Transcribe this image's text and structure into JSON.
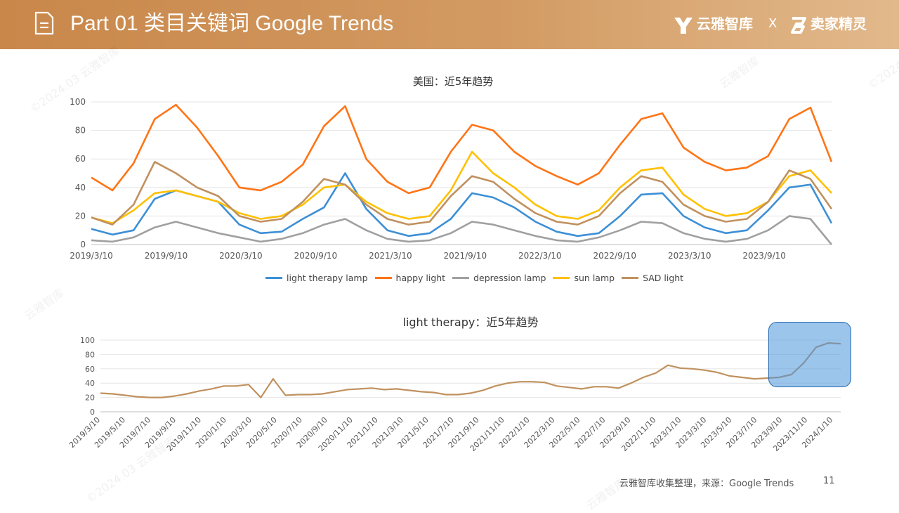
{
  "header": {
    "title": "Part 01 类目关键词 Google Trends",
    "brand_left": "云雅智库",
    "brand_sep": "X",
    "brand_right": "卖家精灵",
    "bar_color": "#c9874a"
  },
  "footer": {
    "source": "云雅智库收集整理，来源：Google Trends",
    "page": "11"
  },
  "watermarks": [
    "©2024.03 云雅智库",
    "云雅智库",
    "©2024.03",
    "云雅智库",
    "©2024.03 云雅智库",
    "云雅智库"
  ],
  "chart_data": [
    {
      "type": "line",
      "title": "美国：近5年趋势",
      "ylim": [
        0,
        100
      ],
      "yticks": [
        0,
        20,
        40,
        60,
        80,
        100
      ],
      "xtick_labels": [
        "2019/3/10",
        "2019/9/10",
        "2020/3/10",
        "2020/9/10",
        "2021/3/10",
        "2021/9/10",
        "2022/3/10",
        "2022/9/10",
        "2023/3/10",
        "2023/9/10"
      ],
      "x": [
        "2019/3",
        "2019/6",
        "2019/9",
        "2019/11",
        "2019/12",
        "2020/1",
        "2020/3",
        "2020/5",
        "2020/7",
        "2020/9",
        "2020/11",
        "2020/12",
        "2021/1",
        "2021/3",
        "2021/5",
        "2021/7",
        "2021/9",
        "2021/10",
        "2021/11",
        "2021/12",
        "2022/1",
        "2022/3",
        "2022/5",
        "2022/7",
        "2022/9",
        "2022/11",
        "2022/12",
        "2023/1",
        "2023/3",
        "2023/5",
        "2023/7",
        "2023/9",
        "2023/11",
        "2023/12",
        "2024/1",
        "2024/3"
      ],
      "series": [
        {
          "name": "light therapy lamp",
          "color": "#3d8fd6",
          "values": [
            11,
            7,
            10,
            32,
            38,
            34,
            30,
            14,
            8,
            9,
            18,
            26,
            50,
            25,
            10,
            6,
            8,
            18,
            36,
            33,
            26,
            16,
            9,
            6,
            8,
            20,
            35,
            36,
            20,
            12,
            8,
            10,
            24,
            40,
            42,
            15
          ]
        },
        {
          "name": "happy light",
          "color": "#ff7415",
          "values": [
            47,
            38,
            57,
            88,
            98,
            82,
            62,
            40,
            38,
            44,
            56,
            83,
            97,
            60,
            44,
            36,
            40,
            65,
            84,
            80,
            65,
            55,
            48,
            42,
            50,
            70,
            88,
            92,
            68,
            58,
            52,
            54,
            62,
            88,
            96,
            58
          ]
        },
        {
          "name": "depression lamp",
          "color": "#a0a0a0",
          "values": [
            3,
            2,
            5,
            12,
            16,
            12,
            8,
            5,
            2,
            4,
            8,
            14,
            18,
            10,
            4,
            2,
            3,
            8,
            16,
            14,
            10,
            6,
            3,
            2,
            5,
            10,
            16,
            15,
            8,
            4,
            2,
            4,
            10,
            20,
            18,
            0
          ]
        },
        {
          "name": "sun lamp",
          "color": "#ffc000",
          "values": [
            19,
            15,
            24,
            36,
            38,
            34,
            30,
            22,
            18,
            20,
            28,
            40,
            42,
            30,
            22,
            18,
            20,
            38,
            65,
            50,
            40,
            28,
            20,
            18,
            24,
            40,
            52,
            54,
            35,
            25,
            20,
            22,
            30,
            48,
            52,
            36
          ]
        },
        {
          "name": "SAD light",
          "color": "#c0915f",
          "values": [
            19,
            14,
            28,
            58,
            50,
            40,
            34,
            20,
            16,
            18,
            30,
            46,
            42,
            28,
            18,
            14,
            16,
            34,
            48,
            44,
            32,
            22,
            16,
            14,
            20,
            36,
            48,
            44,
            28,
            20,
            16,
            18,
            30,
            52,
            46,
            25
          ]
        }
      ]
    },
    {
      "type": "line",
      "title": "light therapy：近5年趋势",
      "ylim": [
        0,
        100
      ],
      "yticks": [
        0,
        20,
        40,
        60,
        80,
        100
      ],
      "xtick_labels": [
        "2019/3/10",
        "2019/5/10",
        "2019/7/10",
        "2019/9/10",
        "2019/11/10",
        "2020/1/10",
        "2020/3/10",
        "2020/5/10",
        "2020/7/10",
        "2020/9/10",
        "2020/11/10",
        "2021/1/10",
        "2021/3/10",
        "2021/5/10",
        "2021/7/10",
        "2021/9/10",
        "2021/11/10",
        "2022/1/10",
        "2022/3/10",
        "2022/5/10",
        "2022/7/10",
        "2022/9/10",
        "2022/11/10",
        "2023/1/10",
        "2023/3/10",
        "2023/5/10",
        "2023/7/10",
        "2023/9/10",
        "2023/11/10",
        "2024/1/10"
      ],
      "x": [
        "2019/3",
        "2019/4",
        "2019/5",
        "2019/6",
        "2019/7",
        "2019/8",
        "2019/9",
        "2019/10",
        "2019/11",
        "2019/12",
        "2020/1",
        "2020/2",
        "2020/3",
        "2020/4",
        "2020/5",
        "2020/6",
        "2020/7",
        "2020/8",
        "2020/9",
        "2020/10",
        "2020/11",
        "2020/12",
        "2021/1",
        "2021/2",
        "2021/3",
        "2021/4",
        "2021/5",
        "2021/6",
        "2021/7",
        "2021/8",
        "2021/9",
        "2021/10",
        "2021/11",
        "2021/12",
        "2022/1",
        "2022/2",
        "2022/3",
        "2022/4",
        "2022/5",
        "2022/6",
        "2022/7",
        "2022/8",
        "2022/9",
        "2022/10",
        "2022/11",
        "2022/12",
        "2023/1",
        "2023/2",
        "2023/3",
        "2023/4",
        "2023/5",
        "2023/6",
        "2023/7",
        "2023/8",
        "2023/9",
        "2023/10",
        "2023/11",
        "2023/12",
        "2024/1",
        "2024/2",
        "2024/3"
      ],
      "series": [
        {
          "name": "light therapy",
          "color": "#c0915f",
          "values": [
            26,
            25,
            23,
            21,
            20,
            20,
            22,
            25,
            29,
            32,
            36,
            36,
            38,
            20,
            46,
            23,
            24,
            24,
            25,
            28,
            31,
            32,
            33,
            31,
            32,
            30,
            28,
            27,
            24,
            24,
            26,
            30,
            36,
            40,
            42,
            42,
            41,
            36,
            34,
            32,
            35,
            35,
            33,
            40,
            48,
            54,
            65,
            61,
            60,
            58,
            55,
            50,
            48,
            46,
            47,
            48,
            52,
            68,
            90,
            96,
            95
          ]
        }
      ]
    }
  ]
}
